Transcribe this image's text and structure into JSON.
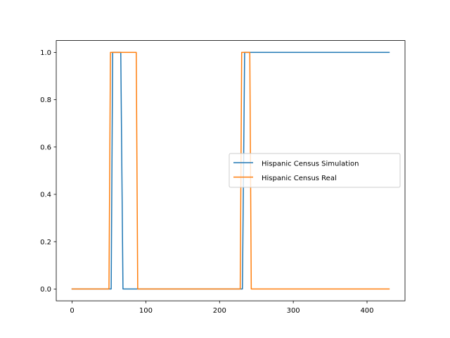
{
  "chart_data": {
    "type": "line",
    "title": "",
    "xlabel": "",
    "ylabel": "",
    "xlim": [
      -21.5,
      451.5
    ],
    "ylim": [
      -0.05,
      1.05
    ],
    "x_ticks": [
      0,
      100,
      200,
      300,
      400
    ],
    "x_tick_labels": [
      "0",
      "100",
      "200",
      "300",
      "400"
    ],
    "y_ticks": [
      0.0,
      0.2,
      0.4,
      0.6,
      0.8,
      1.0
    ],
    "y_tick_labels": [
      "0.0",
      "0.2",
      "0.4",
      "0.6",
      "0.8",
      "1.0"
    ],
    "grid": false,
    "legend_position": "center-right",
    "series": [
      {
        "name": "Hispanic Census Simulation",
        "color": "#1f77b4",
        "x": [
          0,
          53,
          55,
          66,
          69,
          231,
          234,
          430
        ],
        "y": [
          0,
          0,
          1,
          1,
          0,
          0,
          1,
          1
        ]
      },
      {
        "name": "Hispanic Census Real",
        "color": "#ff7f0e",
        "x": [
          0,
          50,
          52,
          87,
          89,
          228,
          230,
          241,
          243,
          430
        ],
        "y": [
          0,
          0,
          1,
          1,
          0,
          0,
          1,
          1,
          0,
          0
        ]
      }
    ]
  }
}
